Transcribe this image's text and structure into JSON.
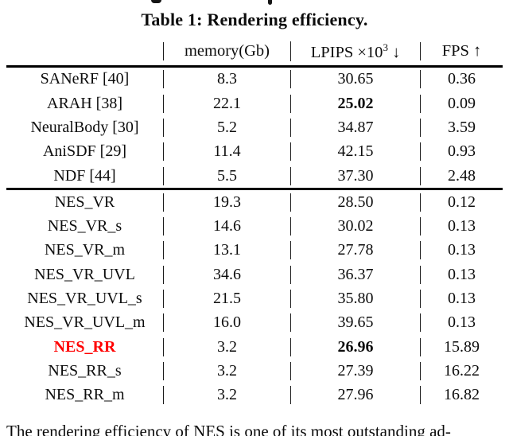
{
  "page": {
    "background": "#ffffff",
    "text_color": "#0d0d0d",
    "accent_red": "#ff0000",
    "rule_color": "#000000"
  },
  "caption": "Table 1: Rendering efficiency.",
  "header": {
    "col0": "",
    "memory": "memory(Gb)",
    "lpips_prefix": "LPIPS ×10",
    "lpips_sup": "3",
    "lpips_suffix": " ↓",
    "fps": "FPS ↑"
  },
  "sections": [
    {
      "rows": [
        {
          "label": "SANeRF [40]",
          "memory": "8.3",
          "lpips": "30.65",
          "fps": "0.36",
          "label_style": "normal",
          "lpips_style": "normal"
        },
        {
          "label": "ARAH [38]",
          "memory": "22.1",
          "lpips": "25.02",
          "fps": "0.09",
          "label_style": "normal",
          "lpips_style": "bold"
        },
        {
          "label": "NeuralBody [30]",
          "memory": "5.2",
          "lpips": "34.87",
          "fps": "3.59",
          "label_style": "normal",
          "lpips_style": "normal"
        },
        {
          "label": "AniSDF [29]",
          "memory": "11.4",
          "lpips": "42.15",
          "fps": "0.93",
          "label_style": "normal",
          "lpips_style": "normal"
        },
        {
          "label": "NDF [44]",
          "memory": "5.5",
          "lpips": "37.30",
          "fps": "2.48",
          "label_style": "normal",
          "lpips_style": "normal"
        }
      ]
    },
    {
      "rows": [
        {
          "label": "NES_VR",
          "memory": "19.3",
          "lpips": "28.50",
          "fps": "0.12",
          "label_style": "normal",
          "lpips_style": "normal"
        },
        {
          "label": "NES_VR_s",
          "memory": "14.6",
          "lpips": "30.02",
          "fps": "0.13",
          "label_style": "normal",
          "lpips_style": "normal"
        },
        {
          "label": "NES_VR_m",
          "memory": "13.1",
          "lpips": "27.78",
          "fps": "0.13",
          "label_style": "normal",
          "lpips_style": "normal"
        },
        {
          "label": "NES_VR_UVL",
          "memory": "34.6",
          "lpips": "36.37",
          "fps": "0.13",
          "label_style": "normal",
          "lpips_style": "normal"
        },
        {
          "label": "NES_VR_UVL_s",
          "memory": "21.5",
          "lpips": "35.80",
          "fps": "0.13",
          "label_style": "normal",
          "lpips_style": "normal"
        },
        {
          "label": "NES_VR_UVL_m",
          "memory": "16.0",
          "lpips": "39.65",
          "fps": "0.13",
          "label_style": "normal",
          "lpips_style": "normal"
        },
        {
          "label": "NES_RR",
          "memory": "3.2",
          "lpips": "26.96",
          "fps": "15.89",
          "label_style": "red-bold",
          "lpips_style": "bold"
        },
        {
          "label": "NES_RR_s",
          "memory": "3.2",
          "lpips": "27.39",
          "fps": "16.22",
          "label_style": "normal",
          "lpips_style": "normal"
        },
        {
          "label": "NES_RR_m",
          "memory": "3.2",
          "lpips": "27.96",
          "fps": "16.82",
          "label_style": "normal",
          "lpips_style": "normal"
        }
      ]
    }
  ],
  "body_text": "The rendering efficiency of NES is one of its most outstanding ad-",
  "chart_data": {
    "type": "table",
    "title": "Table 1: Rendering efficiency.",
    "columns": [
      "method",
      "memory(Gb)",
      "LPIPS ×10^3 ↓",
      "FPS ↑"
    ],
    "rows": [
      [
        "SANeRF [40]",
        8.3,
        30.65,
        0.36
      ],
      [
        "ARAH [38]",
        22.1,
        25.02,
        0.09
      ],
      [
        "NeuralBody [30]",
        5.2,
        34.87,
        3.59
      ],
      [
        "AniSDF [29]",
        11.4,
        42.15,
        0.93
      ],
      [
        "NDF [44]",
        5.5,
        37.3,
        2.48
      ],
      [
        "NES_VR",
        19.3,
        28.5,
        0.12
      ],
      [
        "NES_VR_s",
        14.6,
        30.02,
        0.13
      ],
      [
        "NES_VR_m",
        13.1,
        27.78,
        0.13
      ],
      [
        "NES_VR_UVL",
        34.6,
        36.37,
        0.13
      ],
      [
        "NES_VR_UVL_s",
        21.5,
        35.8,
        0.13
      ],
      [
        "NES_VR_UVL_m",
        16.0,
        39.65,
        0.13
      ],
      [
        "NES_RR",
        3.2,
        26.96,
        15.89
      ],
      [
        "NES_RR_s",
        3.2,
        27.39,
        16.22
      ],
      [
        "NES_RR_m",
        3.2,
        27.96,
        16.82
      ]
    ],
    "notes": "best LPIPS values (25.02, 26.96) bold; NES_RR row label red bold"
  }
}
